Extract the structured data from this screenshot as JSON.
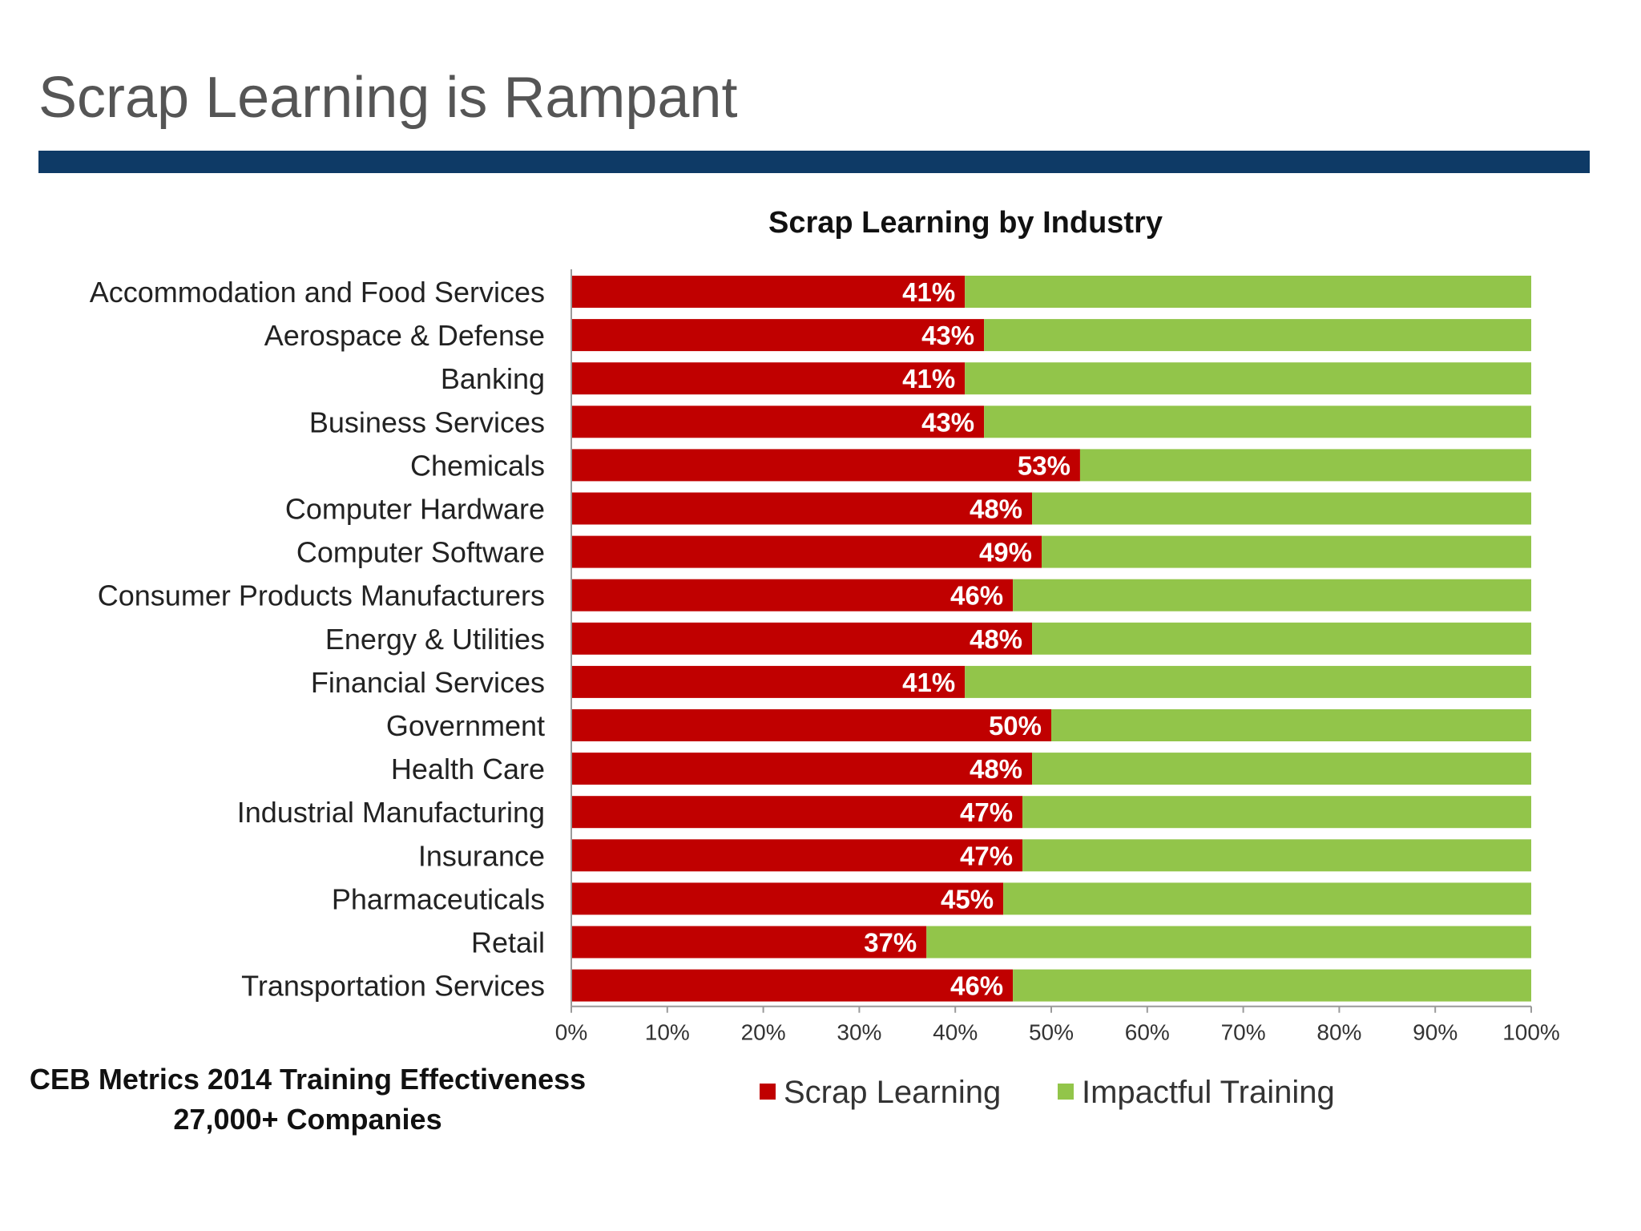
{
  "slide": {
    "title": "Scrap Learning is Rampant",
    "rule_color": "#0E3A66"
  },
  "source": {
    "line1": "CEB Metrics 2014 Training Effectiveness",
    "line2": "27,000+  Companies"
  },
  "chart_data": {
    "type": "bar",
    "orientation": "horizontal",
    "stacked": true,
    "title": "Scrap Learning by Industry",
    "xlabel": "",
    "ylabel": "",
    "xlim": [
      0,
      100
    ],
    "x_ticks": [
      "0%",
      "10%",
      "20%",
      "30%",
      "40%",
      "50%",
      "60%",
      "70%",
      "80%",
      "90%",
      "100%"
    ],
    "grid": false,
    "legend_position": "bottom",
    "categories": [
      "Accommodation and Food Services",
      "Aerospace & Defense",
      "Banking",
      "Business Services",
      "Chemicals",
      "Computer Hardware",
      "Computer Software",
      "Consumer Products Manufacturers",
      "Energy & Utilities",
      "Financial Services",
      "Government",
      "Health Care",
      "Industrial Manufacturing",
      "Insurance",
      "Pharmaceuticals",
      "Retail",
      "Transportation Services"
    ],
    "series": [
      {
        "name": "Scrap Learning",
        "color": "#C00000",
        "values": [
          41,
          43,
          41,
          43,
          53,
          48,
          49,
          46,
          48,
          41,
          50,
          48,
          47,
          47,
          45,
          37,
          46
        ],
        "data_labels": [
          "41%",
          "43%",
          "41%",
          "43%",
          "53%",
          "48%",
          "49%",
          "46%",
          "48%",
          "41%",
          "50%",
          "48%",
          "47%",
          "47%",
          "45%",
          "37%",
          "46%"
        ]
      },
      {
        "name": "Impactful Training",
        "color": "#92C54A",
        "values": [
          59,
          57,
          59,
          57,
          47,
          52,
          51,
          54,
          52,
          59,
          50,
          52,
          53,
          53,
          55,
          63,
          54
        ]
      }
    ]
  }
}
